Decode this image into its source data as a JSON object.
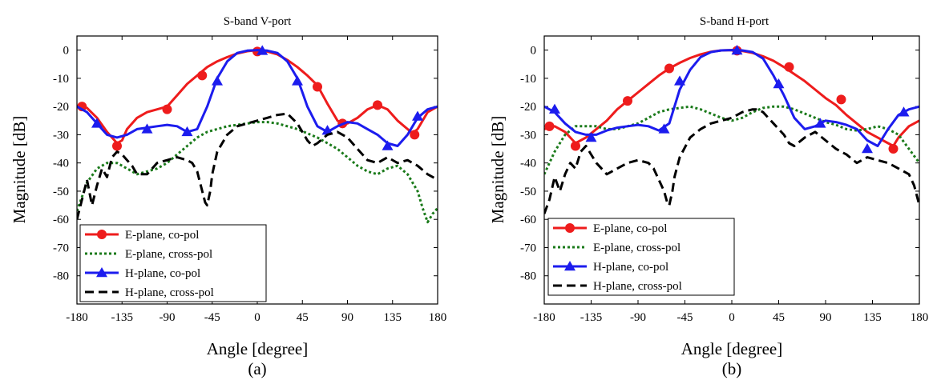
{
  "chart_data": [
    {
      "type": "line",
      "title": "S-band V-port",
      "caption": "(a)",
      "xlabel": "Angle [degree]",
      "ylabel": "Magnitude [dB]",
      "xlim": [
        -180,
        180
      ],
      "ylim": [
        -90,
        5
      ],
      "xticks": [
        -180,
        -135,
        -90,
        -45,
        0,
        45,
        90,
        135,
        180
      ],
      "yticks": [
        0,
        -10,
        -20,
        -30,
        -40,
        -50,
        -60,
        -70,
        -80
      ],
      "legend": "bottom-left",
      "series": [
        {
          "name": "E-plane, co-pol",
          "color": "#ee1c1c",
          "style": "solid",
          "marker": "circle",
          "x": [
            -180,
            -170,
            -160,
            -150,
            -140,
            -135,
            -130,
            -120,
            -110,
            -100,
            -90,
            -80,
            -70,
            -60,
            -50,
            -40,
            -30,
            -20,
            -10,
            0,
            10,
            20,
            30,
            40,
            50,
            60,
            70,
            80,
            85,
            90,
            100,
            110,
            120,
            130,
            140,
            150,
            155,
            160,
            170,
            180
          ],
          "y": [
            -20,
            -20.5,
            -24,
            -29,
            -33,
            -32,
            -28,
            -24,
            -22,
            -21,
            -20,
            -16,
            -12,
            -9,
            -6,
            -4,
            -2.5,
            -1.2,
            -0.4,
            0,
            -0.5,
            -1.5,
            -3.5,
            -6,
            -9,
            -12.5,
            -19,
            -25,
            -26,
            -26,
            -24,
            -21,
            -19.5,
            -21,
            -25,
            -28,
            -29.5,
            -28,
            -22,
            -20
          ],
          "markers_x": [
            -175,
            -140,
            -90,
            -55,
            0,
            60,
            85,
            120,
            157
          ],
          "markers_y": [
            -20,
            -34,
            -21,
            -9,
            -0.5,
            -13,
            -26,
            -19.5,
            -30
          ]
        },
        {
          "name": "E-plane, cross-pol",
          "color": "#1a7a1a",
          "style": "dotted",
          "marker": "none",
          "x": [
            -180,
            -175,
            -170,
            -160,
            -150,
            -140,
            -130,
            -120,
            -110,
            -100,
            -90,
            -80,
            -70,
            -60,
            -50,
            -40,
            -30,
            -20,
            -10,
            0,
            10,
            20,
            30,
            40,
            50,
            60,
            70,
            80,
            90,
            100,
            110,
            120,
            130,
            140,
            150,
            160,
            165,
            170,
            175,
            180
          ],
          "y": [
            -57,
            -52,
            -47,
            -42,
            -40,
            -40,
            -42,
            -44,
            -43,
            -42,
            -40,
            -37,
            -34,
            -31,
            -29,
            -28,
            -27,
            -26.5,
            -26,
            -25.5,
            -25.5,
            -26,
            -27,
            -28,
            -29.5,
            -31,
            -33,
            -35,
            -38,
            -41,
            -43,
            -44,
            -42,
            -41,
            -44,
            -50,
            -56,
            -61,
            -58,
            -56
          ],
          "markers_x": [],
          "markers_y": []
        },
        {
          "name": "H-plane, co-pol",
          "color": "#1c1cee",
          "style": "solid",
          "marker": "triangle",
          "x": [
            -180,
            -170,
            -160,
            -150,
            -140,
            -130,
            -120,
            -110,
            -100,
            -90,
            -80,
            -70,
            -60,
            -50,
            -45,
            -40,
            -30,
            -20,
            -10,
            0,
            10,
            20,
            30,
            40,
            45,
            50,
            60,
            70,
            80,
            90,
            100,
            110,
            120,
            130,
            140,
            150,
            160,
            170,
            180
          ],
          "y": [
            -20,
            -22,
            -26,
            -30,
            -31,
            -30,
            -28,
            -27.5,
            -27,
            -26.5,
            -27,
            -29,
            -28,
            -20,
            -15,
            -10,
            -4,
            -1,
            -0.2,
            0,
            -0.2,
            -1,
            -4,
            -10,
            -15,
            -20,
            -27,
            -29,
            -27,
            -25.5,
            -26,
            -28,
            -30,
            -33,
            -34,
            -30,
            -24,
            -21,
            -20
          ],
          "markers_x": [
            -160,
            -110,
            -70,
            -40,
            5,
            40,
            70,
            130,
            160
          ],
          "markers_y": [
            -26,
            -28,
            -29,
            -11,
            -0.2,
            -11,
            -28.5,
            -34,
            -23.5
          ]
        },
        {
          "name": "H-plane, cross-pol",
          "color": "#000000",
          "style": "dashed",
          "marker": "none",
          "x": [
            -180,
            -175,
            -170,
            -165,
            -160,
            -155,
            -150,
            -145,
            -140,
            -135,
            -130,
            -125,
            -120,
            -110,
            -100,
            -90,
            -80,
            -70,
            -65,
            -60,
            -55,
            -52,
            -50,
            -47,
            -45,
            -40,
            -30,
            -20,
            -10,
            0,
            10,
            20,
            30,
            40,
            50,
            55,
            60,
            70,
            80,
            90,
            100,
            110,
            120,
            130,
            140,
            150,
            160,
            170,
            180
          ],
          "y": [
            -60,
            -53,
            -46,
            -55,
            -48,
            -42,
            -45,
            -38,
            -36,
            -37,
            -39,
            -41,
            -44,
            -44,
            -40,
            -39,
            -38,
            -39,
            -40,
            -43,
            -50,
            -54,
            -55,
            -50,
            -44,
            -36,
            -30,
            -27,
            -26,
            -25,
            -24,
            -23,
            -22.5,
            -26,
            -32,
            -34,
            -33,
            -30,
            -29,
            -31,
            -35,
            -39,
            -40,
            -38,
            -40,
            -39,
            -41,
            -44,
            -46
          ],
          "markers_x": [],
          "markers_y": []
        }
      ]
    },
    {
      "type": "line",
      "title": "S-band H-port",
      "caption": "(b)",
      "xlabel": "Angle [degree]",
      "ylabel": "Magnitude [dB]",
      "xlim": [
        -180,
        180
      ],
      "ylim": [
        -90,
        5
      ],
      "xticks": [
        -180,
        -135,
        -90,
        -45,
        0,
        45,
        90,
        135,
        180
      ],
      "yticks": [
        0,
        -10,
        -20,
        -30,
        -40,
        -50,
        -60,
        -70,
        -80
      ],
      "legend": "bottom-left",
      "series": [
        {
          "name": "E-plane, co-pol",
          "color": "#ee1c1c",
          "style": "solid",
          "marker": "circle",
          "x": [
            -180,
            -170,
            -160,
            -150,
            -140,
            -130,
            -120,
            -110,
            -100,
            -90,
            -80,
            -70,
            -60,
            -50,
            -40,
            -30,
            -20,
            -10,
            0,
            10,
            20,
            30,
            40,
            50,
            60,
            70,
            80,
            90,
            100,
            110,
            120,
            130,
            140,
            150,
            155,
            160,
            170,
            180
          ],
          "y": [
            -28,
            -27,
            -29,
            -33,
            -31,
            -28,
            -25,
            -21,
            -18,
            -15,
            -12,
            -9,
            -6.5,
            -4.5,
            -2.8,
            -1.5,
            -0.6,
            -0.1,
            0,
            -0.3,
            -1,
            -2.2,
            -3.8,
            -6,
            -8.5,
            -11,
            -14,
            -17,
            -19.5,
            -23,
            -26,
            -29,
            -31,
            -33,
            -34,
            -31,
            -27,
            -25
          ],
          "markers_x": [
            -175,
            -150,
            -100,
            -60,
            5,
            55,
            105,
            155
          ],
          "markers_y": [
            -27,
            -34,
            -18,
            -6.5,
            -0.2,
            -6,
            -17.5,
            -35
          ]
        },
        {
          "name": "E-plane, cross-pol",
          "color": "#1a7a1a",
          "style": "dotted",
          "marker": "none",
          "x": [
            -180,
            -170,
            -160,
            -150,
            -140,
            -130,
            -120,
            -110,
            -100,
            -90,
            -80,
            -70,
            -60,
            -50,
            -40,
            -30,
            -20,
            -10,
            0,
            10,
            20,
            30,
            40,
            50,
            60,
            70,
            80,
            90,
            100,
            110,
            120,
            130,
            140,
            150,
            160,
            170,
            180
          ],
          "y": [
            -44,
            -36,
            -30,
            -27,
            -27,
            -27,
            -28,
            -28,
            -27,
            -26,
            -24,
            -22,
            -21,
            -20.5,
            -20,
            -21,
            -22.5,
            -24,
            -25,
            -24,
            -22,
            -20.5,
            -20,
            -20,
            -21,
            -22.5,
            -24,
            -25.5,
            -26.5,
            -28,
            -28.5,
            -28,
            -27,
            -28,
            -30,
            -35,
            -40
          ],
          "markers_x": [],
          "markers_y": []
        },
        {
          "name": "H-plane, co-pol",
          "color": "#1c1cee",
          "style": "solid",
          "marker": "triangle",
          "x": [
            -180,
            -170,
            -160,
            -150,
            -140,
            -130,
            -120,
            -110,
            -100,
            -90,
            -80,
            -70,
            -60,
            -55,
            -50,
            -40,
            -30,
            -20,
            -10,
            0,
            10,
            20,
            30,
            40,
            50,
            60,
            70,
            80,
            90,
            100,
            110,
            120,
            130,
            140,
            150,
            160,
            170,
            180
          ],
          "y": [
            -20,
            -22,
            -26,
            -29,
            -30,
            -30,
            -28.5,
            -27.5,
            -27,
            -26.5,
            -27,
            -28.5,
            -26,
            -20,
            -14,
            -7,
            -2.5,
            -0.7,
            -0.1,
            0,
            -0.1,
            -0.7,
            -3,
            -9,
            -16,
            -24,
            -28,
            -27,
            -25,
            -25.5,
            -26.5,
            -28,
            -32,
            -34,
            -28,
            -23,
            -21,
            -20
          ],
          "markers_x": [
            -170,
            -135,
            -65,
            -50,
            5,
            45,
            85,
            130,
            165
          ],
          "markers_y": [
            -21,
            -31,
            -28,
            -11,
            -0.1,
            -12,
            -26,
            -35,
            -22
          ]
        },
        {
          "name": "H-plane, cross-pol",
          "color": "#000000",
          "style": "dashed",
          "marker": "none",
          "x": [
            -180,
            -175,
            -170,
            -165,
            -160,
            -155,
            -150,
            -145,
            -140,
            -135,
            -130,
            -125,
            -120,
            -110,
            -100,
            -90,
            -80,
            -75,
            -70,
            -65,
            -62,
            -60,
            -57,
            -55,
            -50,
            -40,
            -30,
            -20,
            -10,
            0,
            10,
            20,
            25,
            30,
            40,
            50,
            55,
            60,
            70,
            80,
            90,
            100,
            110,
            120,
            130,
            140,
            150,
            160,
            170,
            175,
            180
          ],
          "y": [
            -58,
            -53,
            -45,
            -50,
            -44,
            -40,
            -42,
            -36,
            -34,
            -37,
            -40,
            -42,
            -44,
            -42,
            -40,
            -39,
            -40,
            -42,
            -46,
            -50,
            -54,
            -55,
            -50,
            -45,
            -38,
            -31,
            -28,
            -26,
            -25,
            -24,
            -22,
            -21,
            -21,
            -22,
            -26,
            -30,
            -33,
            -34,
            -31,
            -29,
            -32,
            -35,
            -37,
            -40,
            -38,
            -39,
            -40,
            -42,
            -44,
            -48,
            -55
          ],
          "markers_x": [],
          "markers_y": []
        }
      ]
    }
  ]
}
